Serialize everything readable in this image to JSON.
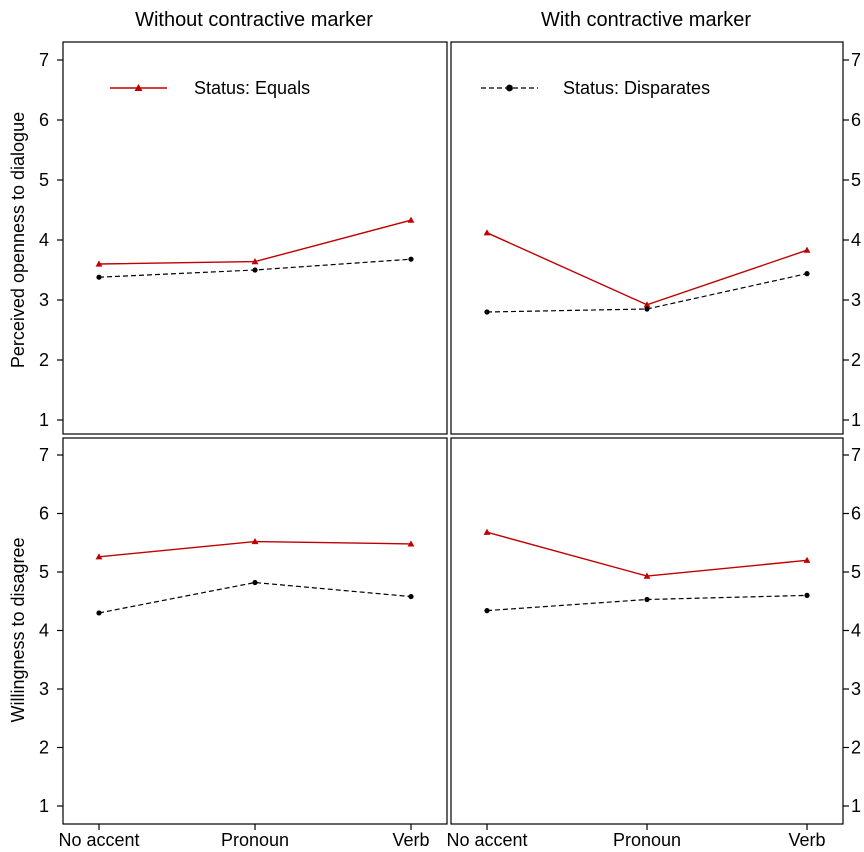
{
  "chart_data": {
    "type": "line",
    "columns": [
      "Without contractive marker",
      "With contractive marker"
    ],
    "rows": [
      "Perceived openness to dialogue",
      "Willingness to disagree"
    ],
    "categories": [
      "No accent",
      "Pronoun",
      "Verb"
    ],
    "ylim": [
      1,
      7
    ],
    "yticks": [
      "1",
      "2",
      "3",
      "4",
      "5",
      "6",
      "7"
    ],
    "legend": [
      {
        "name": "Status: Equals",
        "color": "#c00000",
        "line": "solid",
        "marker": "triangle"
      },
      {
        "name": "Status: Disparates",
        "color": "#000000",
        "line": "dashed",
        "marker": "circle"
      }
    ],
    "panels": [
      {
        "row": 0,
        "col": 0,
        "series": [
          {
            "name": "Status: Equals",
            "values": [
              3.6,
              3.64,
              4.33
            ]
          },
          {
            "name": "Status: Disparates",
            "values": [
              3.38,
              3.5,
              3.68
            ]
          }
        ]
      },
      {
        "row": 0,
        "col": 1,
        "series": [
          {
            "name": "Status: Equals",
            "values": [
              4.12,
              2.92,
              3.83
            ]
          },
          {
            "name": "Status: Disparates",
            "values": [
              2.8,
              2.85,
              3.44
            ]
          }
        ]
      },
      {
        "row": 1,
        "col": 0,
        "series": [
          {
            "name": "Status: Equals",
            "values": [
              5.26,
              5.52,
              5.48
            ]
          },
          {
            "name": "Status: Disparates",
            "values": [
              4.3,
              4.82,
              4.58
            ]
          }
        ]
      },
      {
        "row": 1,
        "col": 1,
        "series": [
          {
            "name": "Status: Equals",
            "values": [
              5.68,
              4.93,
              5.2
            ]
          },
          {
            "name": "Status: Disparates",
            "values": [
              4.34,
              4.53,
              4.6
            ]
          }
        ]
      }
    ]
  }
}
